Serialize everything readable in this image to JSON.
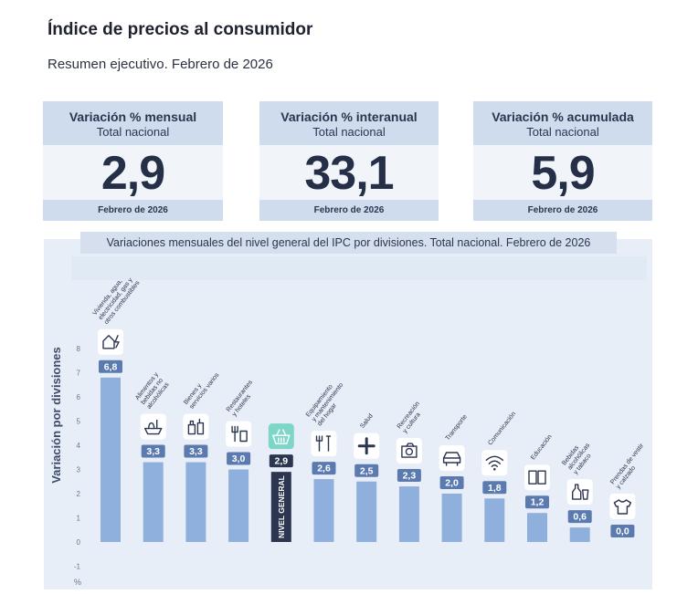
{
  "header": {
    "title": "Índice de precios al consumidor",
    "subtitle": "Resumen ejecutivo. Febrero de 2026"
  },
  "cards": [
    {
      "title": "Variación % mensual",
      "subtitle": "Total nacional",
      "value": "2,9",
      "period": "Febrero de 2026"
    },
    {
      "title": "Variación % interanual",
      "subtitle": "Total nacional",
      "value": "33,1",
      "period": "Febrero de 2026"
    },
    {
      "title": "Variación % acumulada",
      "subtitle": "Total nacional",
      "value": "5,9",
      "period": "Febrero de 2026"
    }
  ],
  "colors": {
    "bar": "#8fb0dc",
    "highlight_bar": "#2c3650",
    "label_bg": "#5b7bb0",
    "highlight_label_bg": "#2c3650",
    "highlight_icon_bg": "#7ed6c8",
    "panel_bg": "#e8eef7"
  },
  "chart_data": {
    "type": "bar",
    "title": "Variaciones mensuales del nivel general del IPC por divisiones. Total nacional. Febrero de 2026",
    "ylabel": "Variación por divisiones",
    "unit_label": "%",
    "ylim": [
      -1,
      8
    ],
    "yticks": [
      "-1",
      "0",
      "1",
      "2",
      "3",
      "4",
      "5",
      "6",
      "7",
      "8"
    ],
    "highlight_index": 4,
    "highlight_bar_text": "NIVEL GENERAL",
    "categories": [
      [
        "Vivienda, agua,",
        "electricidad, gas y",
        "otros combustibles"
      ],
      [
        "Alimentos y",
        "bebidas no",
        "alcohólicas"
      ],
      [
        "Bienes y",
        "servicios varios"
      ],
      [
        "Restaurantes",
        "y hoteles"
      ],
      [],
      [
        "Equipamiento",
        "y mantenimiento",
        "del hogar"
      ],
      [
        "Salud"
      ],
      [
        "Recreación",
        "y cultura"
      ],
      [
        "Transporte"
      ],
      [
        "Comunicación"
      ],
      [
        "Educación"
      ],
      [
        "Bebidas",
        "alcohólicas",
        "y tabaco"
      ],
      [
        "Prendas de vestir",
        "y calzado"
      ]
    ],
    "values": [
      6.8,
      3.3,
      3.3,
      3.0,
      2.9,
      2.6,
      2.5,
      2.3,
      2.0,
      1.8,
      1.2,
      0.6,
      0.0
    ],
    "value_labels": [
      "6,8",
      "3,3",
      "3,3",
      "3,0",
      "2,9",
      "2,6",
      "2,5",
      "2,3",
      "2,0",
      "1,8",
      "1,2",
      "0,6",
      "0,0"
    ],
    "icons": [
      "house-electricity-icon",
      "food-basket-icon",
      "personal-care-bottles-icon",
      "fork-and-cup-icon",
      "shopping-basket-icon",
      "household-tools-icon",
      "health-cross-icon",
      "camera-icon",
      "car-icon",
      "wifi-icon",
      "book-icon",
      "bottle-and-glass-icon",
      "t-shirt-icon"
    ],
    "grid": false
  }
}
